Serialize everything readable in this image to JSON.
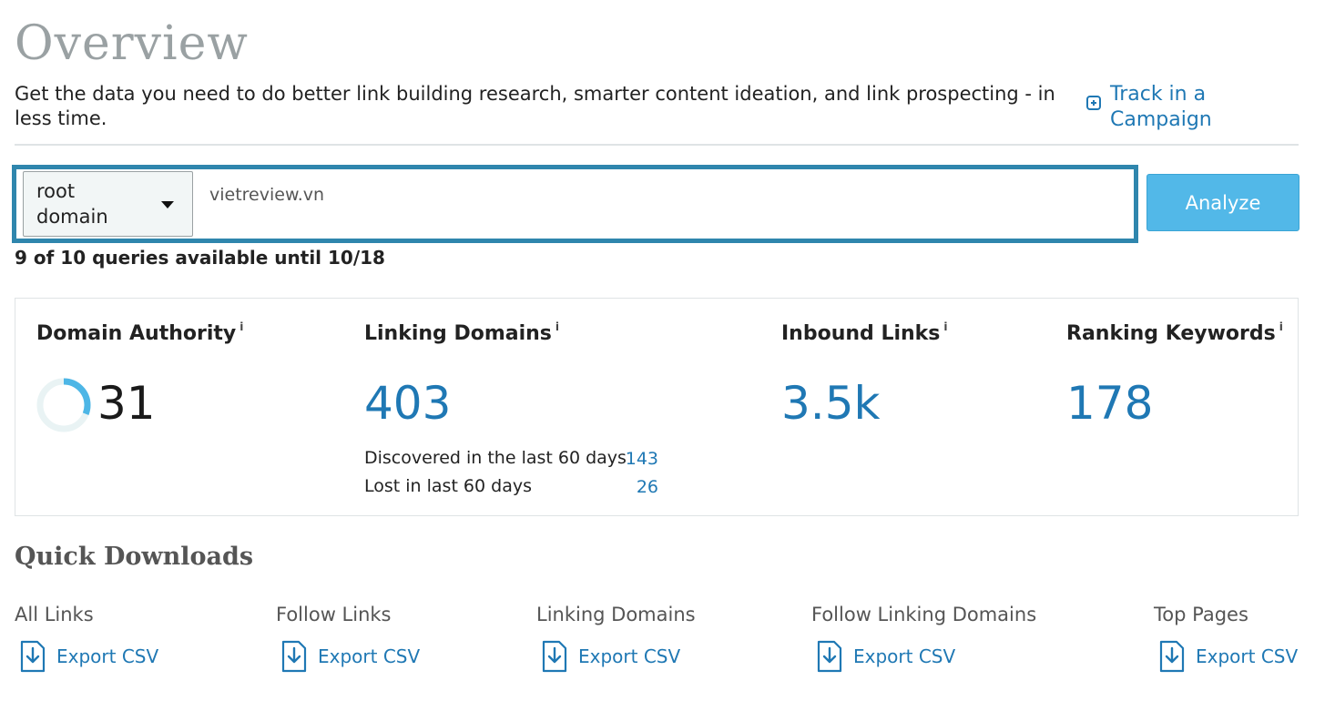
{
  "header": {
    "title": "Overview",
    "subtitle": "Get the data you need to do better link building research, smarter content ideation, and link prospecting - in less time.",
    "track_label_line1": "Track in a",
    "track_label_line2": "Campaign"
  },
  "search": {
    "scope_line1": "root",
    "scope_line2": "domain",
    "value": "vietreview.vn",
    "analyze_label": "Analyze",
    "queries_text": "9 of 10 queries available until 10/18"
  },
  "metrics": {
    "domain_authority": {
      "label": "Domain Authority",
      "info": "i",
      "value": "31",
      "score": 31
    },
    "linking_domains": {
      "label": "Linking Domains",
      "info": "i",
      "value": "403",
      "discovered_label": "Discovered in the last 60 days",
      "discovered_value": "143",
      "lost_label": "Lost in last 60 days",
      "lost_value": "26"
    },
    "inbound_links": {
      "label": "Inbound Links",
      "info": "i",
      "value": "3.5k"
    },
    "ranking_keywords": {
      "label": "Ranking Keywords",
      "info": "i",
      "value": "178"
    }
  },
  "downloads": {
    "title": "Quick Downloads",
    "items": [
      {
        "label": "All Links",
        "link": "Export CSV"
      },
      {
        "label": "Follow Links",
        "link": "Export CSV"
      },
      {
        "label": "Linking Domains",
        "link": "Export CSV"
      },
      {
        "label": "Follow Linking Domains",
        "link": "Export CSV"
      },
      {
        "label": "Top Pages",
        "link": "Export CSV"
      }
    ]
  },
  "colors": {
    "accent": "#1f78b4",
    "input_border": "#2f86ad",
    "button": "#52b8e8"
  },
  "icons": {
    "track": "plus-square-icon",
    "export": "file-download-icon",
    "authority": "progress-ring-icon",
    "dropdown": "chevron-down-icon"
  }
}
